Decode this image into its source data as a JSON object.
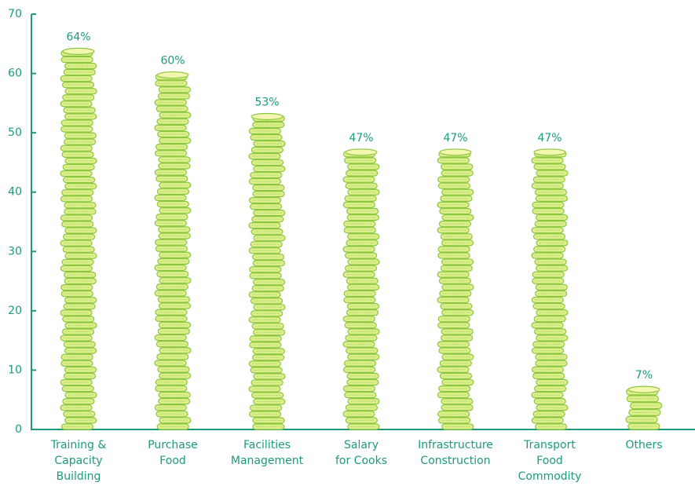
{
  "chart_data": {
    "type": "coin-stack",
    "categories": [
      [
        "Training &",
        "Capacity",
        "Building"
      ],
      [
        "Purchase",
        "Food"
      ],
      [
        "Facilities",
        "Management"
      ],
      [
        "Salary",
        "for Cooks"
      ],
      [
        "Infrastructure",
        "Construction"
      ],
      [
        "Transport",
        "Food",
        "Commodity"
      ],
      [
        "Others"
      ]
    ],
    "values": [
      64,
      60,
      53,
      47,
      47,
      47,
      7
    ],
    "value_labels": [
      "64%",
      "60%",
      "53%",
      "47%",
      "47%",
      "47%",
      "7%"
    ],
    "color": "#dcef8c",
    "ylim": [
      0,
      70
    ],
    "yticks": [
      0,
      10,
      20,
      30,
      40,
      50,
      60,
      70
    ]
  }
}
